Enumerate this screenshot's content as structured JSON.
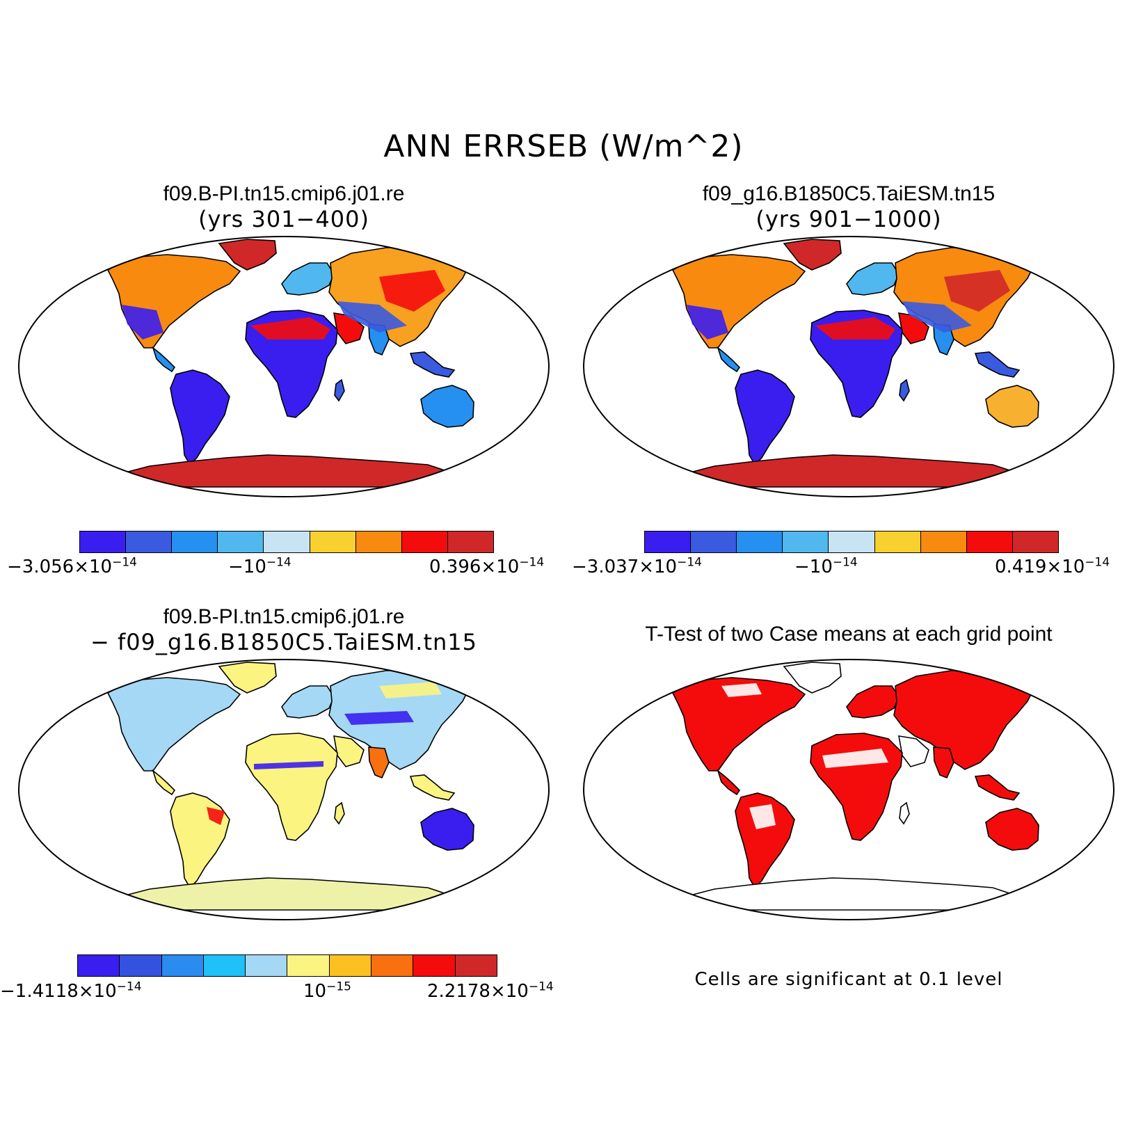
{
  "title": "ANN ERRSEB (W/m^2)",
  "panels": [
    {
      "id": "case1",
      "title_line1": "f09.B-PI.tn15.cmip6.j01.re",
      "title_line2": "(yrs 301−400)",
      "colorbar": {
        "colors": [
          "#3a1ef0",
          "#3a5ae0",
          "#2690f0",
          "#50b8ee",
          "#c8e4f4",
          "#f8d030",
          "#f88a10",
          "#f40c0c",
          "#d02828"
        ],
        "labels": [
          {
            "mant": "−3.056×10",
            "exp": "−14"
          },
          {
            "mant": "−10",
            "exp": "−14"
          },
          {
            "mant": "0.396×10",
            "exp": "−14"
          }
        ]
      }
    },
    {
      "id": "case2",
      "title_line1": "f09_g16.B1850C5.TaiESM.tn15",
      "title_line2": "(yrs 901−1000)",
      "colorbar": {
        "colors": [
          "#3a1ef0",
          "#3a5ae0",
          "#2690f0",
          "#50b8ee",
          "#c8e4f4",
          "#f8d030",
          "#f88a10",
          "#f40c0c",
          "#d02828"
        ],
        "labels": [
          {
            "mant": "−3.037×10",
            "exp": "−14"
          },
          {
            "mant": "−10",
            "exp": "−14"
          },
          {
            "mant": "0.419×10",
            "exp": "−14"
          }
        ]
      }
    },
    {
      "id": "diff",
      "title_line1": "f09.B-PI.tn15.cmip6.j01.re",
      "title_line2": "− f09_g16.B1850C5.TaiESM.tn15",
      "colorbar": {
        "colors": [
          "#3a1ef0",
          "#3452e0",
          "#2a8cf0",
          "#20c0f8",
          "#a4d8f4",
          "#fcf480",
          "#fcc020",
          "#f87010",
          "#f40c0c",
          "#d02828"
        ],
        "labels": [
          {
            "mant": "−1.4118×10",
            "exp": "−14"
          },
          {
            "mant": "10",
            "exp": "−15"
          },
          {
            "mant": "2.2178×10",
            "exp": "−14"
          }
        ]
      }
    },
    {
      "id": "ttest",
      "title_line1": "T-Test of two Case means at each grid point",
      "note": "Cells are significant at 0.1 level"
    }
  ]
}
